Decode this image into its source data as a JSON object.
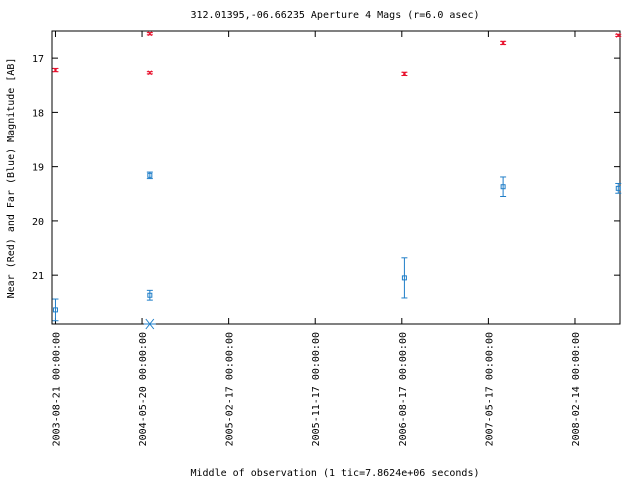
{
  "chart_data": {
    "type": "scatter",
    "title": "312.01395,-06.66235   Aperture 4 Mags (r=6.0 asec)",
    "xlabel": "Middle of observation (1 tic=7.8624e+06 seconds)",
    "ylabel": "Near (Red) and Far (Blue) Magnitude [AB]",
    "y_inverted": true,
    "ylim": [
      21.9,
      16.5
    ],
    "y_ticks": [
      17,
      18,
      19,
      20,
      21
    ],
    "x_ticks": [
      "2003-08-21 00:00:00",
      "2004-05-20 00:00:00",
      "2005-02-17 00:00:00",
      "2005-11-17 00:00:00",
      "2006-08-17 00:00:00",
      "2007-05-17 00:00:00",
      "2008-02-14 00:00:00"
    ],
    "x_unit": "tic",
    "xlim": [
      -0.04,
      6.52
    ],
    "grid": false,
    "colors": {
      "near": "#e8112d",
      "far": "#1f7ec8",
      "axis": "#000000"
    },
    "series": [
      {
        "key": "near",
        "marker": "x",
        "points": [
          {
            "x": 0.0,
            "y": 17.22,
            "err": 0.03
          },
          {
            "x": 1.09,
            "y": 17.27,
            "err": 0.02
          },
          {
            "x": 1.09,
            "y": 16.55,
            "err": 0.02
          },
          {
            "x": 4.03,
            "y": 17.29,
            "err": 0.03
          },
          {
            "x": 5.17,
            "y": 16.72,
            "err": 0.03
          },
          {
            "x": 6.5,
            "y": 16.58,
            "err": 0.02
          }
        ]
      },
      {
        "key": "far",
        "marker": "square",
        "points": [
          {
            "x": 0.0,
            "y": 21.64,
            "err": 0.2
          },
          {
            "x": 1.09,
            "y": 21.37,
            "err": 0.09
          },
          {
            "x": 1.09,
            "y": 19.16,
            "err": 0.06
          },
          {
            "x": 4.03,
            "y": 21.05,
            "err": 0.37
          },
          {
            "x": 5.17,
            "y": 19.37,
            "err": 0.18
          },
          {
            "x": 6.5,
            "y": 19.4,
            "err": 0.09
          }
        ]
      },
      {
        "key": "limit",
        "marker": "asterisk",
        "points": [
          {
            "x": 1.09,
            "y": 21.9
          }
        ]
      }
    ]
  }
}
